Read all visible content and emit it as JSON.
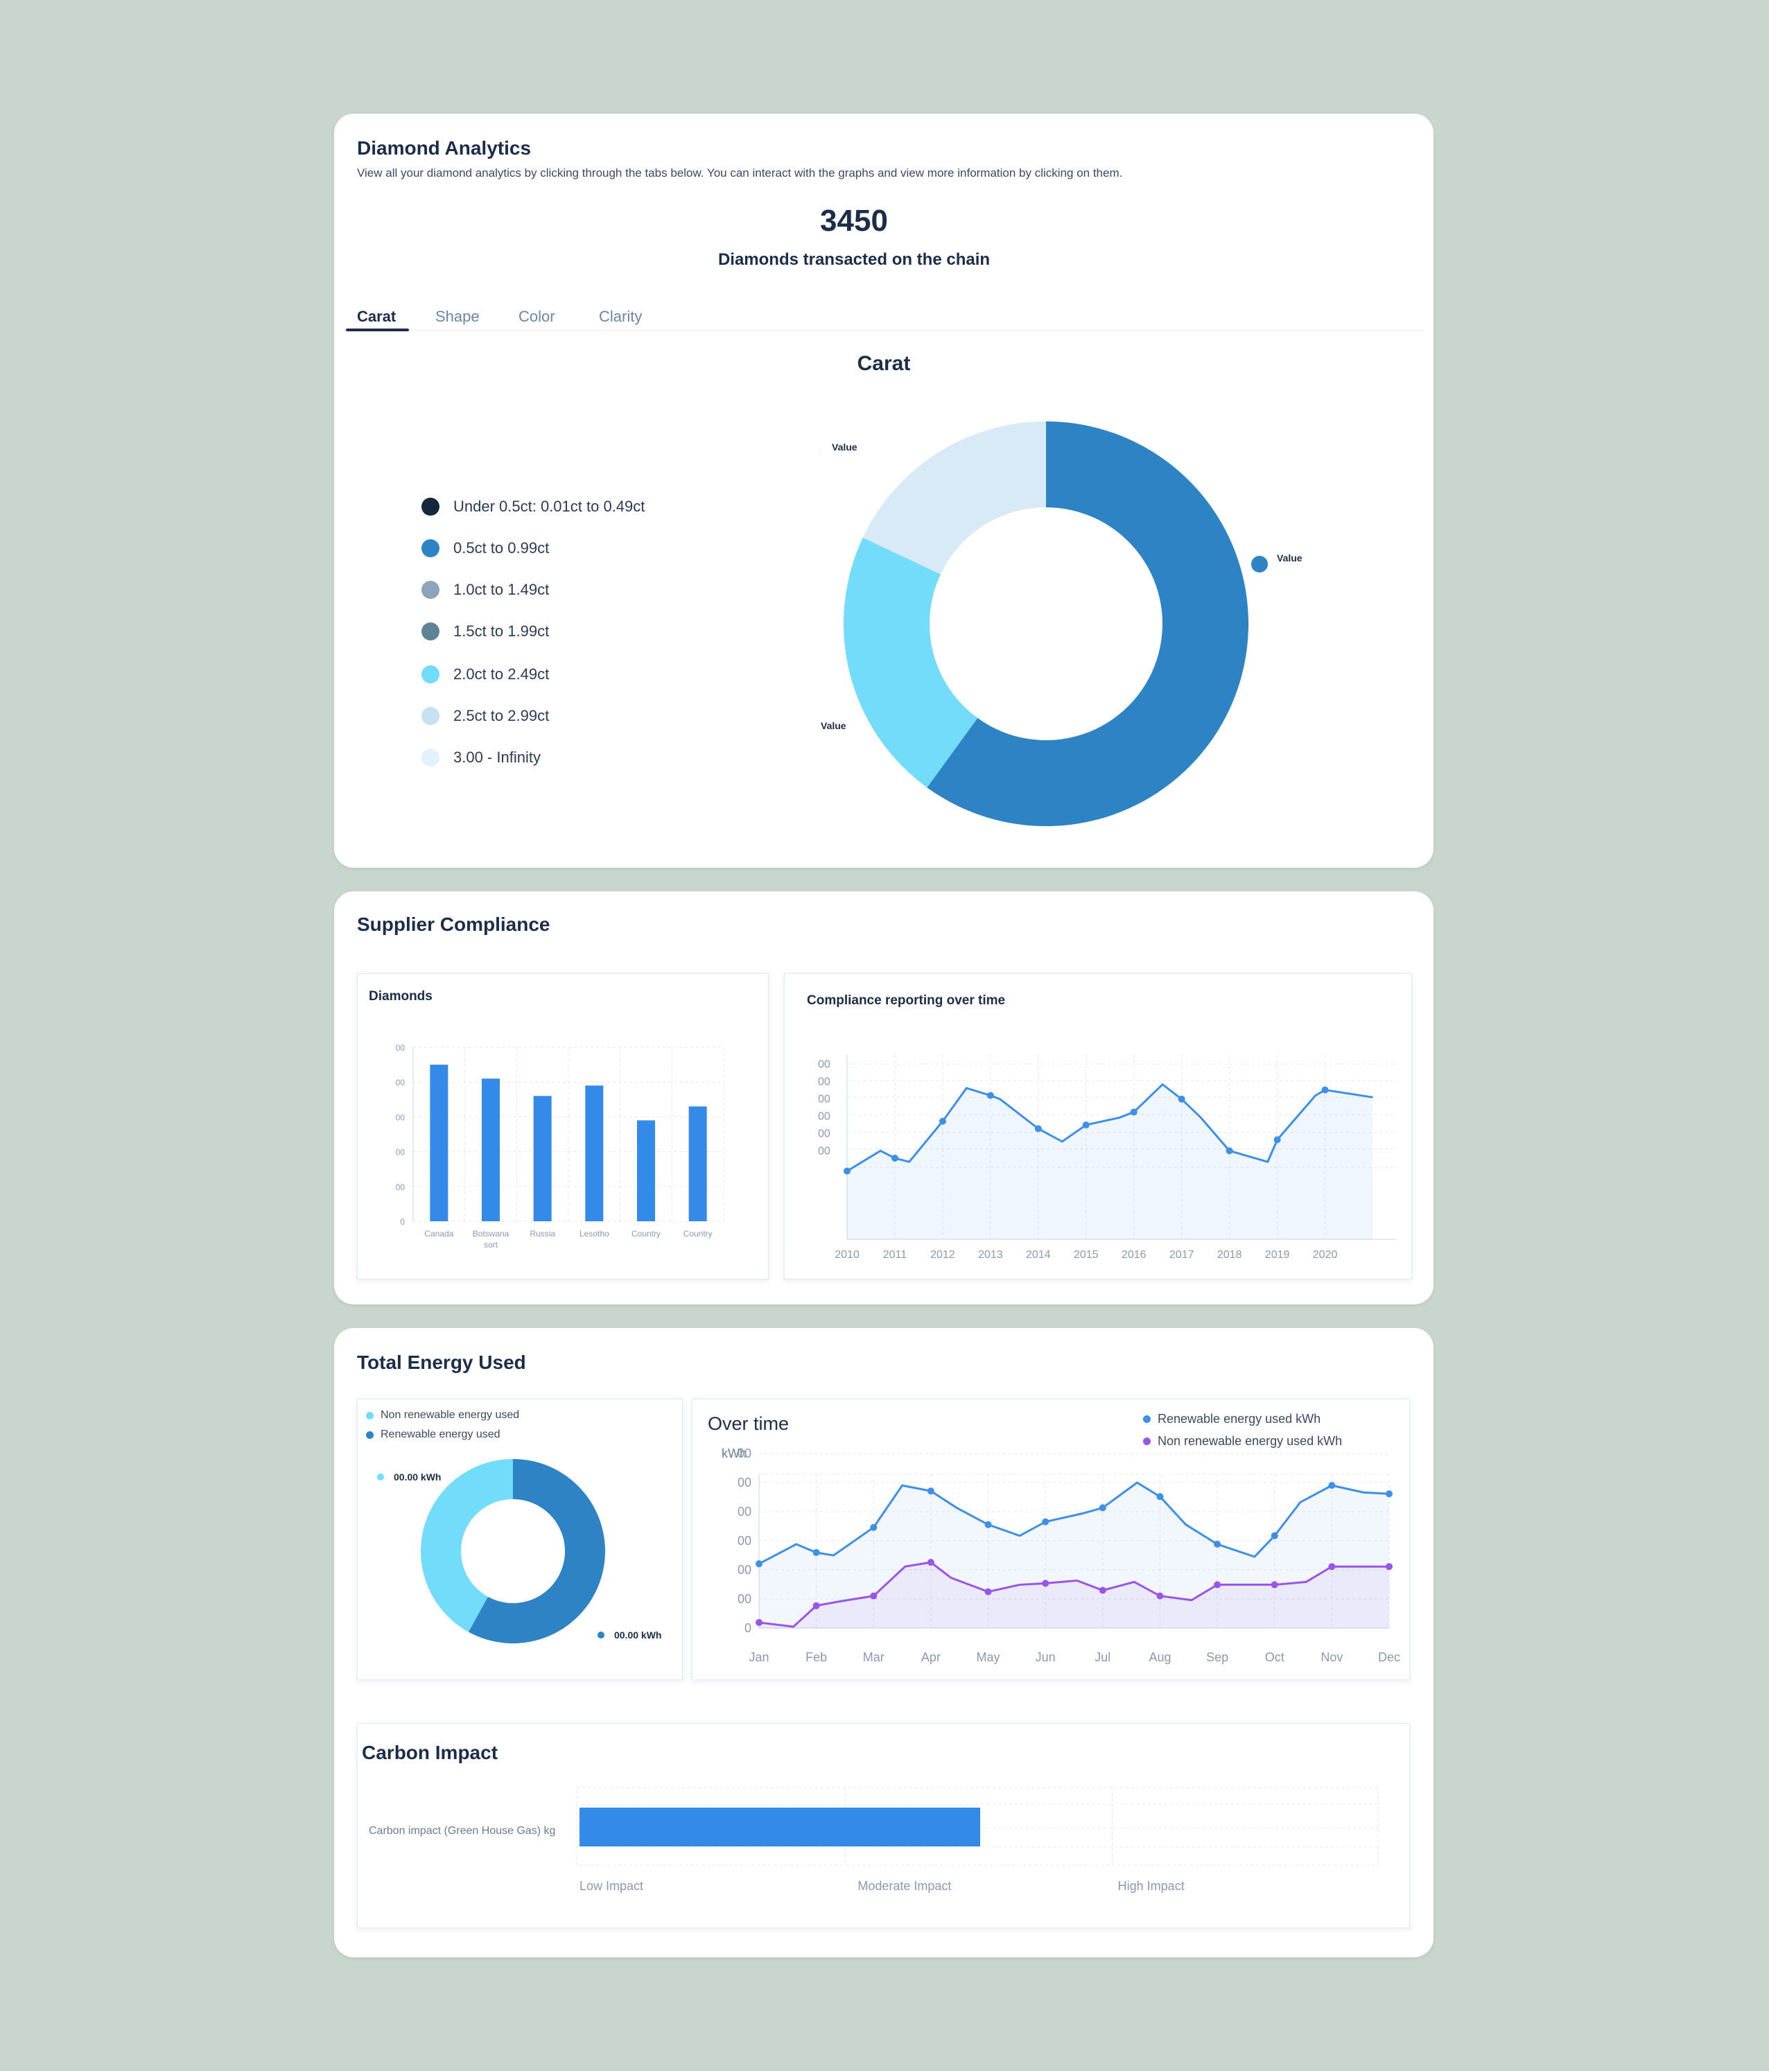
{
  "analytics": {
    "title": "Diamond Analytics",
    "description": "View all your diamond analytics by clicking through the tabs below. You can interact with the graphs and view more information by clicking on them.",
    "total_value": "3450",
    "total_caption": "Diamonds transacted on the chain",
    "tabs": [
      {
        "label": "Carat",
        "active": true
      },
      {
        "label": "Shape",
        "active": false
      },
      {
        "label": "Color",
        "active": false
      },
      {
        "label": "Clarity",
        "active": false
      }
    ],
    "legend": [
      {
        "label": "Under 0.5ct: 0.01ct to 0.49ct",
        "color": "#15283a"
      },
      {
        "label": "0.5ct to 0.99ct",
        "color": "#2d83c3"
      },
      {
        "label": "1.0ct to 1.49ct",
        "color": "#8aa4b8"
      },
      {
        "label": "1.5ct to 1.99ct",
        "color": "#5e8397"
      },
      {
        "label": "2.0ct to 2.49ct",
        "color": "#74dcfb"
      },
      {
        "label": "2.5ct to 2.99ct",
        "color": "#c6e1ef"
      },
      {
        "label": "3.00 - Infinity",
        "color": "#e1f2fb"
      }
    ]
  },
  "chart_data": [
    {
      "type": "pie",
      "title": "Carat",
      "slices": [
        {
          "label": "Value",
          "value": 60,
          "color": "#2d83c3"
        },
        {
          "label": "Value",
          "value": 22,
          "color": "#74dcfb"
        },
        {
          "label": "Value",
          "value": 18,
          "color": "#d9eaf7"
        }
      ]
    },
    {
      "type": "bar",
      "title": "Diamonds",
      "categories": [
        "Canada",
        "Botswana sort",
        "Russia",
        "Lesotho",
        "Country",
        "Country"
      ],
      "values": [
        4.5,
        4.1,
        3.6,
        3.9,
        2.9,
        3.3
      ],
      "ytick_labels": [
        "0",
        "00",
        "00",
        "00",
        "00",
        "00"
      ],
      "ylim": [
        0,
        5
      ],
      "grid": true
    },
    {
      "type": "area",
      "title": "Compliance reporting over time",
      "x": [
        2010,
        2010.7,
        2011,
        2011.3,
        2012,
        2012.5,
        2013,
        2013.2,
        2014,
        2014.5,
        2015,
        2015.7,
        2016,
        2016.6,
        2017,
        2017.4,
        2018,
        2018.8,
        2019,
        2019.8,
        2020,
        2021
      ],
      "values": [
        1.85,
        2.4,
        2.2,
        2.1,
        3.2,
        4.1,
        3.9,
        3.8,
        3.0,
        2.65,
        3.1,
        3.3,
        3.45,
        4.2,
        3.8,
        3.3,
        2.4,
        2.1,
        2.7,
        3.9,
        4.05,
        3.85
      ],
      "markers": [
        0,
        2,
        4,
        6,
        8,
        10,
        12,
        14,
        16,
        18,
        20
      ],
      "xtick_labels": [
        "2010",
        "2011",
        "2012",
        "2013",
        "2014",
        "2015",
        "2016",
        "2017",
        "2018",
        "2019",
        "2020"
      ],
      "ytick_labels": [
        "00",
        "00",
        "00",
        "00",
        "00",
        "00"
      ],
      "ylim": [
        0,
        5
      ],
      "grid": true
    },
    {
      "type": "pie",
      "title": "",
      "legend": [
        "Non renewable energy used",
        "Renewable energy used"
      ],
      "slices": [
        {
          "label": "00.00 kWh",
          "value": 58,
          "color": "#2d83c3"
        },
        {
          "label": "00.00 kWh",
          "value": 42,
          "color": "#74dcfb"
        }
      ]
    },
    {
      "type": "line",
      "title": "Over time",
      "ylabel": "kWh",
      "categories": [
        "Jan",
        "Feb",
        "Mar",
        "Apr",
        "May",
        "Jun",
        "Jul",
        "Aug",
        "Sep",
        "Oct",
        "Nov",
        "Dec"
      ],
      "ytick_labels": [
        "0",
        "00",
        "00",
        "00",
        "00",
        "00",
        "00"
      ],
      "ylim": [
        0,
        5.5
      ],
      "series": [
        {
          "name": "Renewable energy used kWh",
          "color": "#3e8fe6",
          "x": [
            0,
            0.65,
            1,
            1.3,
            2,
            2.5,
            3,
            3.45,
            4,
            4.55,
            5,
            5.65,
            6,
            6.6,
            7,
            7.45,
            8,
            8.65,
            9,
            9.45,
            10,
            10.55,
            11
          ],
          "values": [
            2.3,
            3.0,
            2.7,
            2.6,
            3.6,
            5.1,
            4.9,
            4.3,
            3.7,
            3.3,
            3.8,
            4.1,
            4.3,
            5.2,
            4.7,
            3.7,
            3.0,
            2.55,
            3.3,
            4.5,
            5.1,
            4.85,
            4.8
          ],
          "markers": [
            0,
            2,
            4,
            6,
            8,
            10,
            12,
            14,
            16,
            18,
            20,
            22
          ]
        },
        {
          "name": "Non renewable energy used kWh",
          "color": "#9a55e6",
          "x": [
            0,
            0.6,
            1,
            1.4,
            2,
            2.55,
            3,
            3.35,
            4,
            4.55,
            5,
            5.55,
            6,
            6.55,
            7,
            7.55,
            8,
            8.6,
            9,
            9.55,
            10,
            10.55,
            11
          ],
          "values": [
            0.2,
            0.05,
            0.8,
            0.95,
            1.15,
            2.2,
            2.35,
            1.8,
            1.3,
            1.55,
            1.6,
            1.7,
            1.35,
            1.65,
            1.15,
            1.0,
            1.55,
            1.55,
            1.55,
            1.65,
            2.2,
            2.2,
            2.2
          ],
          "markers": [
            0,
            2,
            4,
            6,
            8,
            10,
            12,
            14,
            16,
            18,
            20,
            22
          ]
        }
      ],
      "grid": true,
      "legend_position": "top-right"
    },
    {
      "type": "bar",
      "orientation": "horizontal",
      "title": "Carbon Impact",
      "categories": [
        "Carbon impact (Green House Gas) kg"
      ],
      "values": [
        1.5
      ],
      "xtick_labels": [
        "Low Impact",
        "Moderate Impact",
        "High Impact"
      ],
      "xlim": [
        0,
        3
      ],
      "grid": true
    }
  ],
  "supplier": {
    "title": "Supplier Compliance",
    "bar_panel_title": "Diamonds",
    "line_panel_title": "Compliance reporting over time"
  },
  "energy": {
    "title": "Total Energy Used",
    "legend": [
      {
        "label": "Non renewable energy used",
        "color": "#74dcfb"
      },
      {
        "label": "Renewable energy used",
        "color": "#2d83c3"
      }
    ],
    "donut_label_light": "00.00 kWh",
    "donut_label_dark": "00.00 kWh",
    "over_time_title": "Over time",
    "unit": "kWh",
    "series_legend": [
      {
        "label": "Renewable energy used kWh",
        "color": "#3e8fe6"
      },
      {
        "label": "Non renewable energy used kWh",
        "color": "#9a55e6"
      }
    ]
  },
  "carbon": {
    "title": "Carbon Impact",
    "row_label": "Carbon impact (Green House Gas) kg",
    "scale": [
      "Low Impact",
      "Moderate Impact",
      "High Impact"
    ]
  },
  "colors": {
    "background": "#c9d6cd",
    "primary": "#2d83c3",
    "accent_light": "#74dcfb",
    "bar_blue": "#338ae9",
    "text_dark": "#1c2d4a"
  }
}
